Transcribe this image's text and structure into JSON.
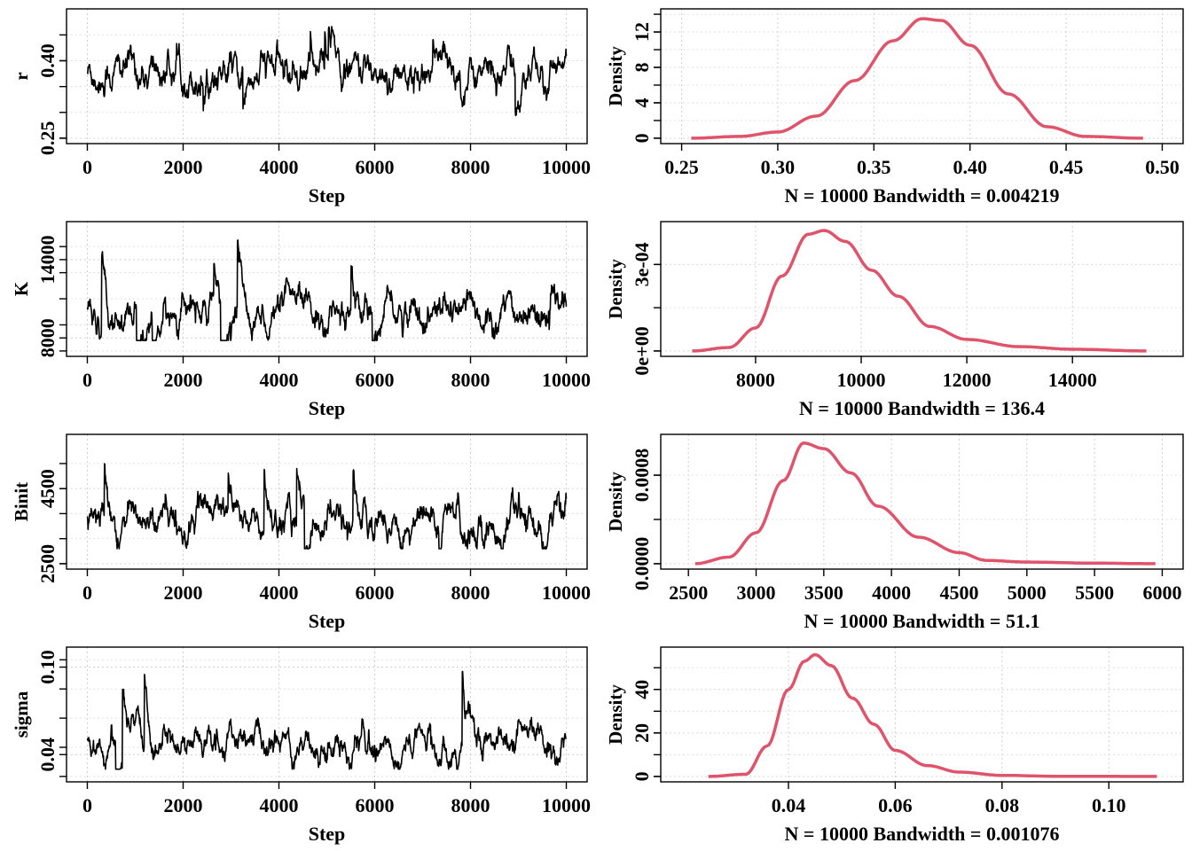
{
  "chart_data": [
    {
      "type": "line",
      "kind": "trace",
      "parameter": "r",
      "xlabel": "Step",
      "ylabel": "r",
      "xlim": [
        0,
        10000
      ],
      "ylim": [
        0.25,
        0.49
      ],
      "xticks": [
        "0",
        "2000",
        "4000",
        "6000",
        "8000",
        "10000"
      ],
      "yticks": [
        "0.25",
        "0.40"
      ],
      "yticks_values": [
        0.25,
        0.4
      ],
      "xticks_values": [
        0,
        2000,
        4000,
        6000,
        8000,
        10000
      ],
      "series": [
        {
          "x": [
            0,
            10000
          ],
          "center": 0.378,
          "spread": 0.024,
          "min": 0.28,
          "max": 0.48
        }
      ],
      "grid": true,
      "line_color": "#000000"
    },
    {
      "type": "line",
      "kind": "density",
      "parameter": "r",
      "xlabel": "N = 10000   Bandwidth = 0.004219",
      "ylabel": "Density",
      "xlim": [
        0.25,
        0.5
      ],
      "ylim": [
        0,
        14
      ],
      "xticks": [
        "0.25",
        "0.30",
        "0.35",
        "0.40",
        "0.45",
        "0.50"
      ],
      "xticks_values": [
        0.25,
        0.3,
        0.35,
        0.4,
        0.45,
        0.5
      ],
      "yticks": [
        "0",
        "4",
        "8",
        "12"
      ],
      "yticks_values": [
        0,
        4,
        8,
        12
      ],
      "series": [
        {
          "x": [
            0.255,
            0.28,
            0.3,
            0.32,
            0.34,
            0.36,
            0.375,
            0.385,
            0.4,
            0.42,
            0.44,
            0.46,
            0.49
          ],
          "y": [
            0.0,
            0.2,
            0.7,
            2.5,
            6.5,
            11.0,
            13.5,
            13.3,
            10.5,
            5.0,
            1.3,
            0.2,
            0.0
          ]
        }
      ],
      "grid": true,
      "line_color": "#df536b"
    },
    {
      "type": "line",
      "kind": "trace",
      "parameter": "K",
      "xlabel": "Step",
      "ylabel": "K",
      "xlim": [
        0,
        10000
      ],
      "ylim": [
        7000,
        16500
      ],
      "xticks": [
        "0",
        "2000",
        "4000",
        "6000",
        "8000",
        "10000"
      ],
      "xticks_values": [
        0,
        2000,
        4000,
        6000,
        8000,
        10000
      ],
      "yticks": [
        "8000",
        "14000"
      ],
      "yticks_values": [
        8000,
        14000
      ],
      "series": [
        {
          "x": [
            0,
            10000
          ],
          "center": 9900,
          "spread": 900,
          "min": 7800,
          "max": 15500
        }
      ],
      "grid": true,
      "line_color": "#000000"
    },
    {
      "type": "line",
      "kind": "density",
      "parameter": "K",
      "xlabel": "N = 10000   Bandwidth = 136.4",
      "ylabel": "Density",
      "xlim": [
        6600,
        15700
      ],
      "ylim": [
        0,
        0.00043
      ],
      "xticks": [
        "8000",
        "10000",
        "12000",
        "14000"
      ],
      "xticks_values": [
        8000,
        10000,
        12000,
        14000
      ],
      "yticks": [
        "0e+00",
        "3e-04"
      ],
      "yticks_values": [
        0,
        0.0003
      ],
      "series": [
        {
          "x": [
            6800,
            7500,
            8000,
            8500,
            9000,
            9300,
            9700,
            10200,
            10700,
            11300,
            12000,
            13000,
            14000,
            15400
          ],
          "y": [
            0.0,
            1.2e-05,
            8e-05,
            0.00026,
            0.000405,
            0.000418,
            0.00038,
            0.00028,
            0.00019,
            8.5e-05,
            4e-05,
            1.5e-05,
            6e-06,
            0.0
          ]
        }
      ],
      "grid": true,
      "line_color": "#df536b"
    },
    {
      "type": "line",
      "kind": "trace",
      "parameter": "Binit",
      "xlabel": "Step",
      "ylabel": "Binit",
      "xlim": [
        0,
        10000
      ],
      "ylim": [
        2500,
        5800
      ],
      "xticks": [
        "0",
        "2000",
        "4000",
        "6000",
        "8000",
        "10000"
      ],
      "xticks_values": [
        0,
        2000,
        4000,
        6000,
        8000,
        10000
      ],
      "yticks": [
        "2500",
        "4500"
      ],
      "yticks_values": [
        2500,
        4500
      ],
      "series": [
        {
          "x": [
            0,
            10000
          ],
          "center": 3600,
          "spread": 320,
          "min": 2900,
          "max": 5500
        }
      ],
      "grid": true,
      "line_color": "#000000"
    },
    {
      "type": "line",
      "kind": "density",
      "parameter": "Binit",
      "xlabel": "N = 10000   Bandwidth = 51.1",
      "ylabel": "Density",
      "xlim": [
        2450,
        6000
      ],
      "ylim": [
        0,
        0.00112
      ],
      "xticks": [
        "2500",
        "3000",
        "3500",
        "4000",
        "4500",
        "5000",
        "5500",
        "6000"
      ],
      "xticks_values": [
        2500,
        3000,
        3500,
        4000,
        4500,
        5000,
        5500,
        6000
      ],
      "yticks": [
        "0.0000",
        "0.0008"
      ],
      "yticks_values": [
        0,
        0.0008
      ],
      "series": [
        {
          "x": [
            2550,
            2800,
            3000,
            3200,
            3350,
            3500,
            3700,
            3900,
            4200,
            4500,
            4700,
            5000,
            5500,
            5950
          ],
          "y": [
            0.0,
            6e-05,
            0.00028,
            0.00075,
            0.00109,
            0.00104,
            0.00082,
            0.00052,
            0.00024,
            0.0001,
            3e-05,
            1.5e-05,
            5e-06,
            0.0
          ]
        }
      ],
      "grid": true,
      "line_color": "#df536b"
    },
    {
      "type": "line",
      "kind": "trace",
      "parameter": "sigma",
      "xlabel": "Step",
      "ylabel": "sigma",
      "xlim": [
        0,
        10000
      ],
      "ylim": [
        0.025,
        0.11
      ],
      "xticks": [
        "0",
        "2000",
        "4000",
        "6000",
        "8000",
        "10000"
      ],
      "xticks_values": [
        0,
        2000,
        4000,
        6000,
        8000,
        10000
      ],
      "yticks": [
        "0.04",
        "0.10"
      ],
      "yticks_values": [
        0.04,
        0.1
      ],
      "series": [
        {
          "x": [
            0,
            10000
          ],
          "center": 0.047,
          "spread": 0.007,
          "min": 0.03,
          "max": 0.105
        }
      ],
      "grid": true,
      "line_color": "#000000"
    },
    {
      "type": "line",
      "kind": "density",
      "parameter": "sigma",
      "xlabel": "N = 10000   Bandwidth = 0.001076",
      "ylabel": "Density",
      "xlim": [
        0.02,
        0.11
      ],
      "ylim": [
        0,
        57
      ],
      "xticks": [
        "0.04",
        "0.06",
        "0.08",
        "0.10"
      ],
      "xticks_values": [
        0.04,
        0.06,
        0.08,
        0.1
      ],
      "yticks": [
        "0",
        "20",
        "40"
      ],
      "yticks_values": [
        0,
        20,
        40
      ],
      "series": [
        {
          "x": [
            0.025,
            0.032,
            0.036,
            0.04,
            0.043,
            0.045,
            0.048,
            0.052,
            0.056,
            0.06,
            0.066,
            0.072,
            0.08,
            0.09,
            0.109
          ],
          "y": [
            0.0,
            1.0,
            14.0,
            40.0,
            53.0,
            56.0,
            51.0,
            36.0,
            24.0,
            12.0,
            5.0,
            2.0,
            0.5,
            0.1,
            0.0
          ]
        }
      ],
      "grid": true,
      "line_color": "#df536b"
    }
  ]
}
